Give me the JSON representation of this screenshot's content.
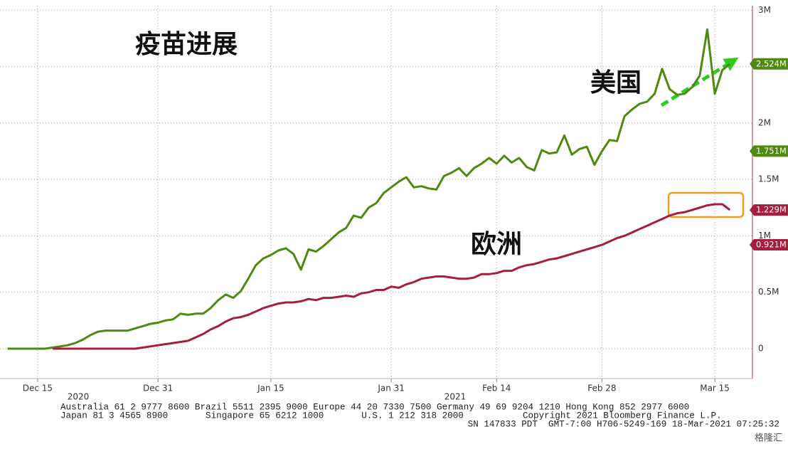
{
  "chart_data": {
    "type": "line",
    "annotations": {
      "title": "疫苗进展",
      "us": "美国",
      "europe": "欧洲"
    },
    "x": [
      "2020-12-11",
      "2020-12-12",
      "2020-12-13",
      "2020-12-14",
      "2020-12-15",
      "2020-12-16",
      "2020-12-17",
      "2020-12-18",
      "2020-12-19",
      "2020-12-20",
      "2020-12-21",
      "2020-12-22",
      "2020-12-23",
      "2020-12-24",
      "2020-12-25",
      "2020-12-26",
      "2020-12-27",
      "2020-12-28",
      "2020-12-29",
      "2020-12-30",
      "2020-12-31",
      "2021-01-01",
      "2021-01-02",
      "2021-01-03",
      "2021-01-04",
      "2021-01-05",
      "2021-01-06",
      "2021-01-07",
      "2021-01-08",
      "2021-01-09",
      "2021-01-10",
      "2021-01-11",
      "2021-01-12",
      "2021-01-13",
      "2021-01-14",
      "2021-01-15",
      "2021-01-16",
      "2021-01-17",
      "2021-01-18",
      "2021-01-19",
      "2021-01-20",
      "2021-01-21",
      "2021-01-22",
      "2021-01-23",
      "2021-01-24",
      "2021-01-25",
      "2021-01-26",
      "2021-01-27",
      "2021-01-28",
      "2021-01-29",
      "2021-01-30",
      "2021-01-31",
      "2021-02-01",
      "2021-02-02",
      "2021-02-03",
      "2021-02-04",
      "2021-02-05",
      "2021-02-06",
      "2021-02-07",
      "2021-02-08",
      "2021-02-09",
      "2021-02-10",
      "2021-02-11",
      "2021-02-12",
      "2021-02-13",
      "2021-02-14",
      "2021-02-15",
      "2021-02-16",
      "2021-02-17",
      "2021-02-18",
      "2021-02-19",
      "2021-02-20",
      "2021-02-21",
      "2021-02-22",
      "2021-02-23",
      "2021-02-24",
      "2021-02-25",
      "2021-02-26",
      "2021-02-27",
      "2021-02-28",
      "2021-03-01",
      "2021-03-02",
      "2021-03-03",
      "2021-03-04",
      "2021-03-05",
      "2021-03-06",
      "2021-03-07",
      "2021-03-08",
      "2021-03-09",
      "2021-03-10",
      "2021-03-11",
      "2021-03-12",
      "2021-03-13",
      "2021-03-14",
      "2021-03-15",
      "2021-03-16",
      "2021-03-17"
    ],
    "series": [
      {
        "color": "#4e8a12",
        "values": [
          0,
          0,
          0,
          0,
          0,
          0,
          0.01,
          0.02,
          0.03,
          0.05,
          0.08,
          0.12,
          0.15,
          0.16,
          0.16,
          0.16,
          0.16,
          0.18,
          0.2,
          0.22,
          0.23,
          0.25,
          0.26,
          0.31,
          0.3,
          0.31,
          0.31,
          0.36,
          0.43,
          0.48,
          0.45,
          0.51,
          0.62,
          0.74,
          0.8,
          0.83,
          0.87,
          0.89,
          0.84,
          0.7,
          0.88,
          0.86,
          0.91,
          0.97,
          1.03,
          1.07,
          1.18,
          1.16,
          1.25,
          1.29,
          1.38,
          1.43,
          1.48,
          1.52,
          1.43,
          1.44,
          1.42,
          1.41,
          1.53,
          1.56,
          1.6,
          1.53,
          1.6,
          1.64,
          1.69,
          1.64,
          1.71,
          1.65,
          1.69,
          1.61,
          1.58,
          1.76,
          1.73,
          1.74,
          1.89,
          1.72,
          1.77,
          1.79,
          1.63,
          1.75,
          1.85,
          1.84,
          2.06,
          2.12,
          2.17,
          2.19,
          2.26,
          2.48,
          2.3,
          2.25,
          2.26,
          2.32,
          2.42,
          2.83,
          2.26,
          2.47,
          2.524
        ]
      },
      {
        "color": "#a61e3c",
        "values": [
          null,
          null,
          null,
          null,
          null,
          null,
          0,
          0,
          0,
          0,
          0,
          0,
          0,
          0,
          0,
          0,
          0,
          0,
          0.01,
          0.02,
          0.03,
          0.04,
          0.05,
          0.06,
          0.07,
          0.1,
          0.13,
          0.17,
          0.2,
          0.24,
          0.27,
          0.28,
          0.3,
          0.33,
          0.36,
          0.38,
          0.4,
          0.41,
          0.41,
          0.42,
          0.44,
          0.43,
          0.45,
          0.45,
          0.46,
          0.47,
          0.46,
          0.49,
          0.5,
          0.52,
          0.52,
          0.55,
          0.54,
          0.57,
          0.59,
          0.62,
          0.63,
          0.64,
          0.64,
          0.63,
          0.62,
          0.62,
          0.63,
          0.66,
          0.66,
          0.67,
          0.69,
          0.69,
          0.72,
          0.74,
          0.75,
          0.77,
          0.79,
          0.8,
          0.82,
          0.84,
          0.86,
          0.88,
          0.9,
          0.92,
          0.95,
          0.98,
          1.0,
          1.03,
          1.06,
          1.09,
          1.12,
          1.15,
          1.18,
          1.2,
          1.21,
          1.23,
          1.25,
          1.27,
          1.28,
          1.28,
          1.229
        ]
      }
    ],
    "xlim": [
      "2020-12-10",
      "2021-03-20"
    ],
    "xticks": [
      {
        "value": "2020-12-15",
        "label": "Dec 15"
      },
      {
        "value": "2020-12-31",
        "label": "Dec 31"
      },
      {
        "value": "2021-01-15",
        "label": "Jan 15"
      },
      {
        "value": "2021-01-31",
        "label": "Jan 31"
      },
      {
        "value": "2021-02-14",
        "label": "Feb 14"
      },
      {
        "value": "2021-02-28",
        "label": "Feb 28"
      },
      {
        "value": "2021-03-15",
        "label": "Mar 15"
      }
    ],
    "years": [
      "2020",
      "2021"
    ],
    "ylim": [
      -0.265,
      3.04
    ],
    "yticks": [
      0,
      {
        "value": 0.5,
        "label": "0.5M"
      },
      {
        "value": 1,
        "label": "1M"
      },
      {
        "value": 1.5,
        "label": "1.5M"
      },
      {
        "value": 2,
        "label": "2M"
      },
      {
        "value": 2.5,
        "label": "2.5M"
      },
      {
        "value": 3,
        "label": "3M"
      }
    ],
    "grid": true,
    "axis_tags": [
      {
        "value": 2.524,
        "label": "2.524M",
        "color": "#4e8a12"
      },
      {
        "value": 1.751,
        "label": "1.751M",
        "color": "#4e8a12"
      },
      {
        "value": 1.229,
        "label": "1.229M",
        "color": "#a61e3c"
      },
      {
        "value": 0.921,
        "label": "0.921M",
        "color": "#a61e3c"
      }
    ],
    "footer": [
      "Australia 61 2 9777 8600 Brazil 5511 2395 9000 Europe 44 20 7330 7500 Germany 49 69 9204 1210 Hong Kong 852 2977 6000",
      "Japan 81 3 4565 8900       Singapore 65 6212 1000       U.S. 1 212 318 2000           Copyright 2021 Bloomberg Finance L.P.",
      "SN 147833 PDT  GMT-7:00 H706-5249-169 18-Mar-2021 07:25:32"
    ],
    "logo": "格隆汇"
  }
}
